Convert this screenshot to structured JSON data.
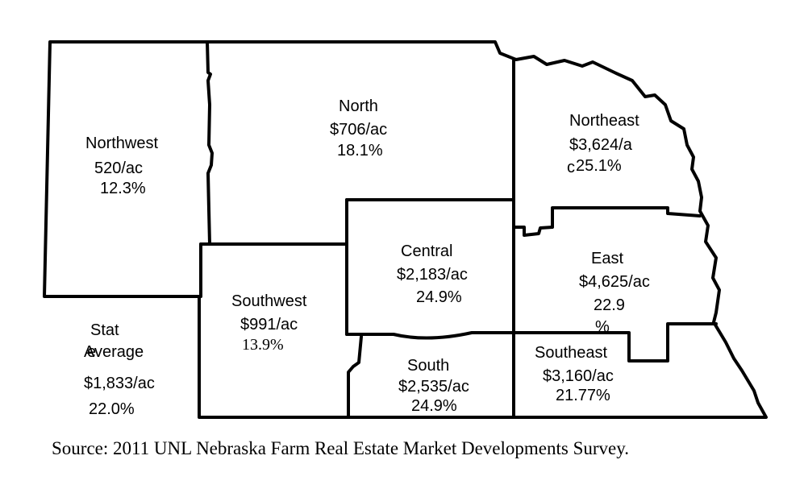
{
  "regions": {
    "northwest": {
      "name": "Northwest",
      "value": "520/ac",
      "change": "12.3%"
    },
    "north": {
      "name": "North",
      "value": "$706/ac",
      "change": "18.1%"
    },
    "northeast": {
      "name": "Northeast",
      "value_line1": "$3,624/a",
      "value_line2_char": "c",
      "change": "25.1%"
    },
    "central": {
      "name": "Central",
      "value": "$2,183/ac",
      "change": "24.9%"
    },
    "east": {
      "name": "East",
      "value": "$4,625/ac",
      "change_line1": "22.9",
      "change_line2": "%"
    },
    "southwest": {
      "name": "Southwest",
      "value": "$991/ac",
      "change": "13.9%"
    },
    "south": {
      "name": "South",
      "value": "$2,535/ac",
      "change": "24.9%"
    },
    "southeast": {
      "name": "Southeast",
      "value": "$3,160/ac",
      "change": "21.77%"
    }
  },
  "state_average": {
    "label_line1": "Stat",
    "overlap_char": "e",
    "label_line2": "Average",
    "value": "$1,833/ac",
    "change": "22.0%"
  },
  "source": "Source:  2011 UNL Nebraska Farm Real Estate Market Developments Survey."
}
